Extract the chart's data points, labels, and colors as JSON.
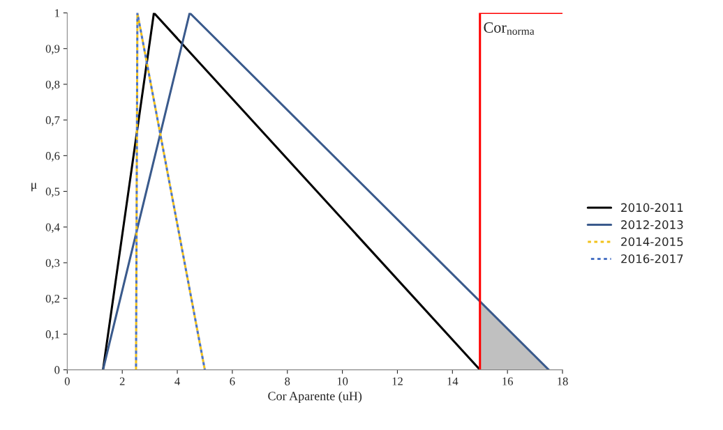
{
  "chart_data": {
    "type": "line",
    "xlabel": "Cor Aparente (uH)",
    "ylabel": "μ",
    "series": [
      {
        "name": "2010-2011",
        "color": "#000000",
        "x": [
          1.3,
          3.15,
          15
        ],
        "values": [
          0,
          1,
          0
        ],
        "line_style": "solid"
      },
      {
        "name": "2012-2013",
        "color": "#3a5a8c",
        "x": [
          1.3,
          4.45,
          17.5
        ],
        "values": [
          0,
          1,
          0
        ],
        "line_style": "solid"
      },
      {
        "name": "2014-2015",
        "color": "#f2c21b",
        "x": [
          2.5,
          2.55,
          5
        ],
        "values": [
          0,
          1,
          0
        ],
        "line_style": "dotted"
      },
      {
        "name": "2016-2017",
        "color": "#4a72c4",
        "x": [
          2.5,
          2.55,
          5
        ],
        "values": [
          0,
          1,
          0
        ],
        "line_style": "dotted"
      },
      {
        "type": "area",
        "color": "#c0c0c0",
        "x": [
          15,
          17.5
        ],
        "values": [
          0.19,
          0
        ]
      },
      {
        "color": "#ff0000",
        "x": [
          15,
          15,
          18
        ],
        "values": [
          0,
          1,
          1
        ],
        "line_style": "solid"
      }
    ],
    "annotations": [
      "Cor$_{norma}$"
    ],
    "xlim": [
      0,
      18
    ],
    "xticks": [
      0,
      2,
      4,
      6,
      8,
      10,
      12,
      14,
      16,
      18
    ],
    "ylim": [
      0,
      1
    ],
    "yticks": [
      0,
      {
        "value": 0.1,
        "label": "0,1"
      },
      {
        "value": 0.2,
        "label": "0,2"
      },
      {
        "value": 0.3,
        "label": "0,3"
      },
      {
        "value": 0.4,
        "label": "0,4"
      },
      {
        "value": 0.5,
        "label": "0,5"
      },
      {
        "value": 0.6,
        "label": "0,6"
      },
      {
        "value": 0.7,
        "label": "0,7"
      },
      {
        "value": 0.8,
        "label": "0,8"
      },
      {
        "value": 0.9,
        "label": "0,9"
      },
      1
    ],
    "grid": false,
    "legend": "right"
  }
}
